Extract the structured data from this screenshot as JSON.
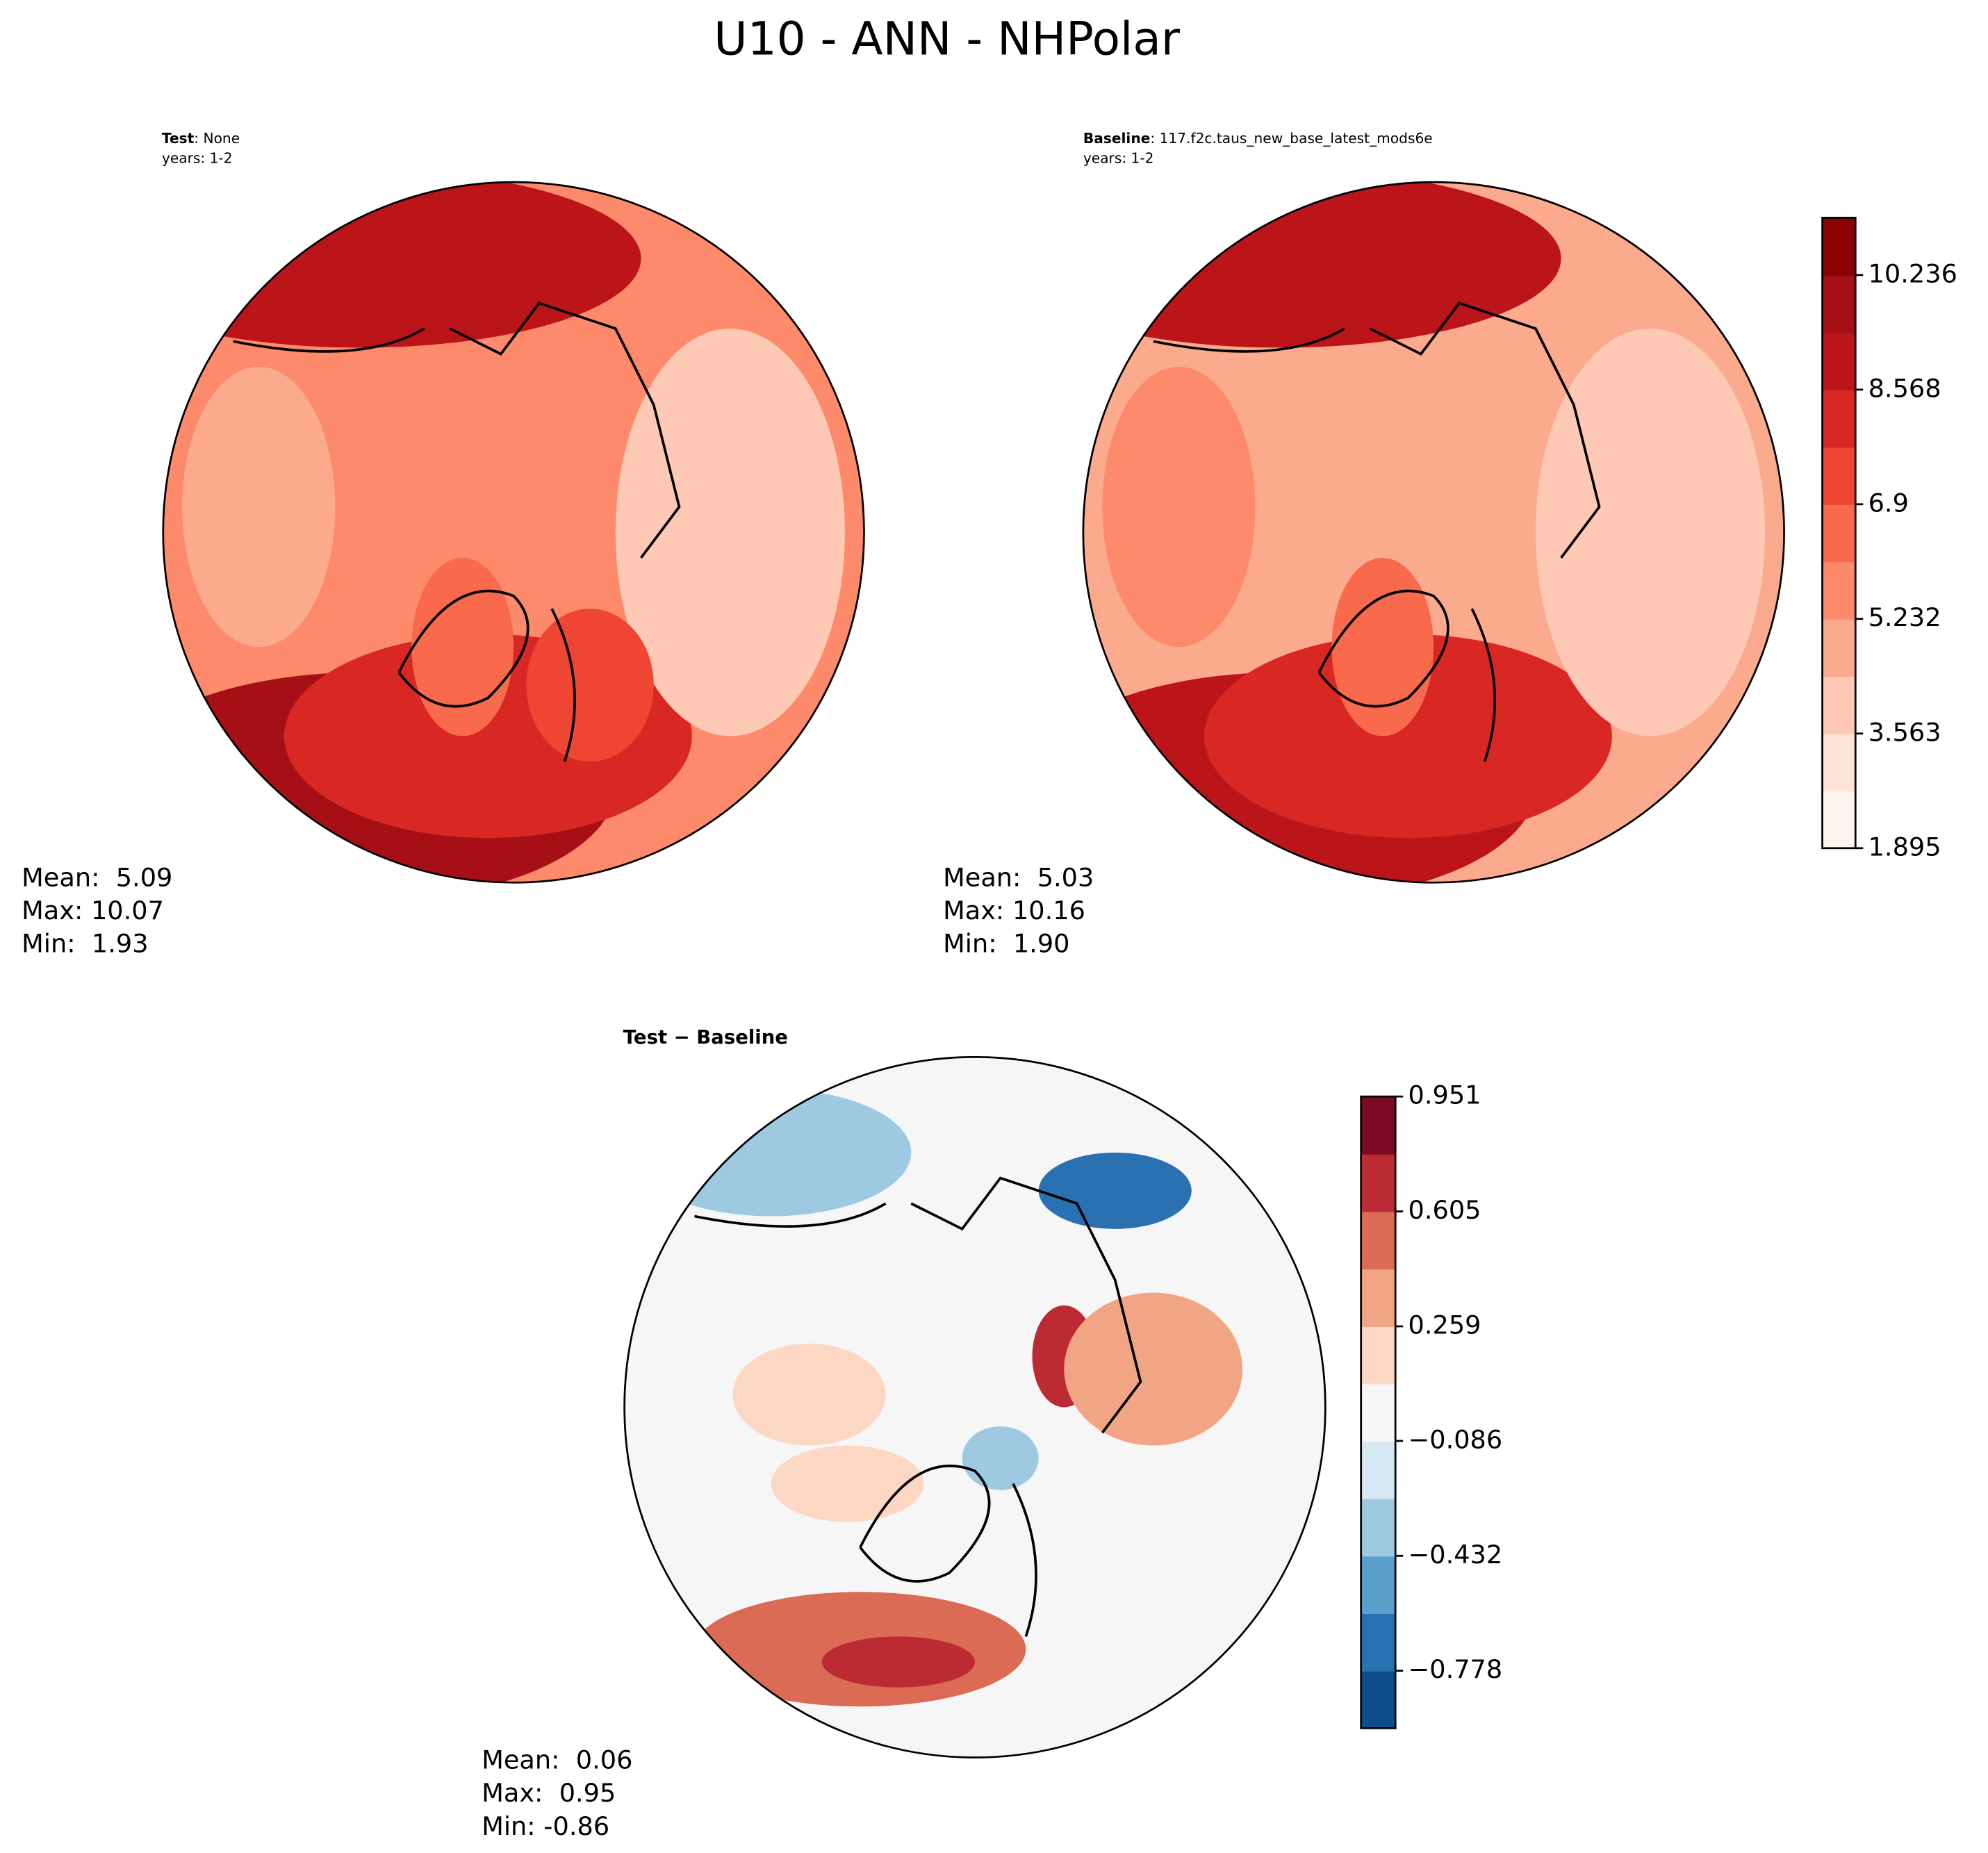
{
  "title": "U10 - ANN - NHPolar",
  "panels": [
    {
      "name": "Test",
      "text": ": None",
      "years": "years: 1-2",
      "stats": [
        "Mean:  5.09",
        "Max: 10.07",
        "Min:  1.93"
      ]
    },
    {
      "name": "Baseline",
      "text": ": 117.f2c.taus_new_base_latest_mods6e",
      "years": "years: 1-2",
      "stats": [
        "Mean:  5.03",
        "Max: 10.16",
        "Min:  1.90"
      ]
    },
    {
      "name": "Test − Baseline",
      "stats": [
        "Mean:  0.06",
        "Max:  0.95",
        "Min: -0.86"
      ]
    }
  ],
  "colorbars": [
    {
      "lim": [
        1.895,
        11.069
      ],
      "ticks": [
        1.895,
        3.563,
        5.232,
        6.9,
        {
          "value": 6.9,
          "label": "6.900"
        },
        8.568,
        10.236
      ],
      "colors": [
        "#fff5f0",
        "#fee3d6",
        "#fdc9b4",
        "#fcaa8e",
        "#fc8a6b",
        "#f9694c",
        "#ef4533",
        "#d92723",
        "#bb151a",
        "#a50f15",
        "#8b0000"
      ]
    },
    {
      "lim": [
        -0.951,
        0.951
      ],
      "ticks": [
        {
          "value": -0.778,
          "label": "−0.778"
        },
        {
          "value": -0.432,
          "label": "−0.432"
        },
        {
          "value": -0.086,
          "label": "−0.086"
        },
        0.259,
        0.605,
        0.951
      ],
      "colors": [
        "#0f4d8a",
        "#2a71b2",
        "#5a9ecc",
        "#9dcae1",
        "#d5e7f1",
        "#f7f6f6",
        "#fbd7c4",
        "#f2a585",
        "#db6b55",
        "#bc2b33",
        "#7d0b25"
      ]
    }
  ]
}
